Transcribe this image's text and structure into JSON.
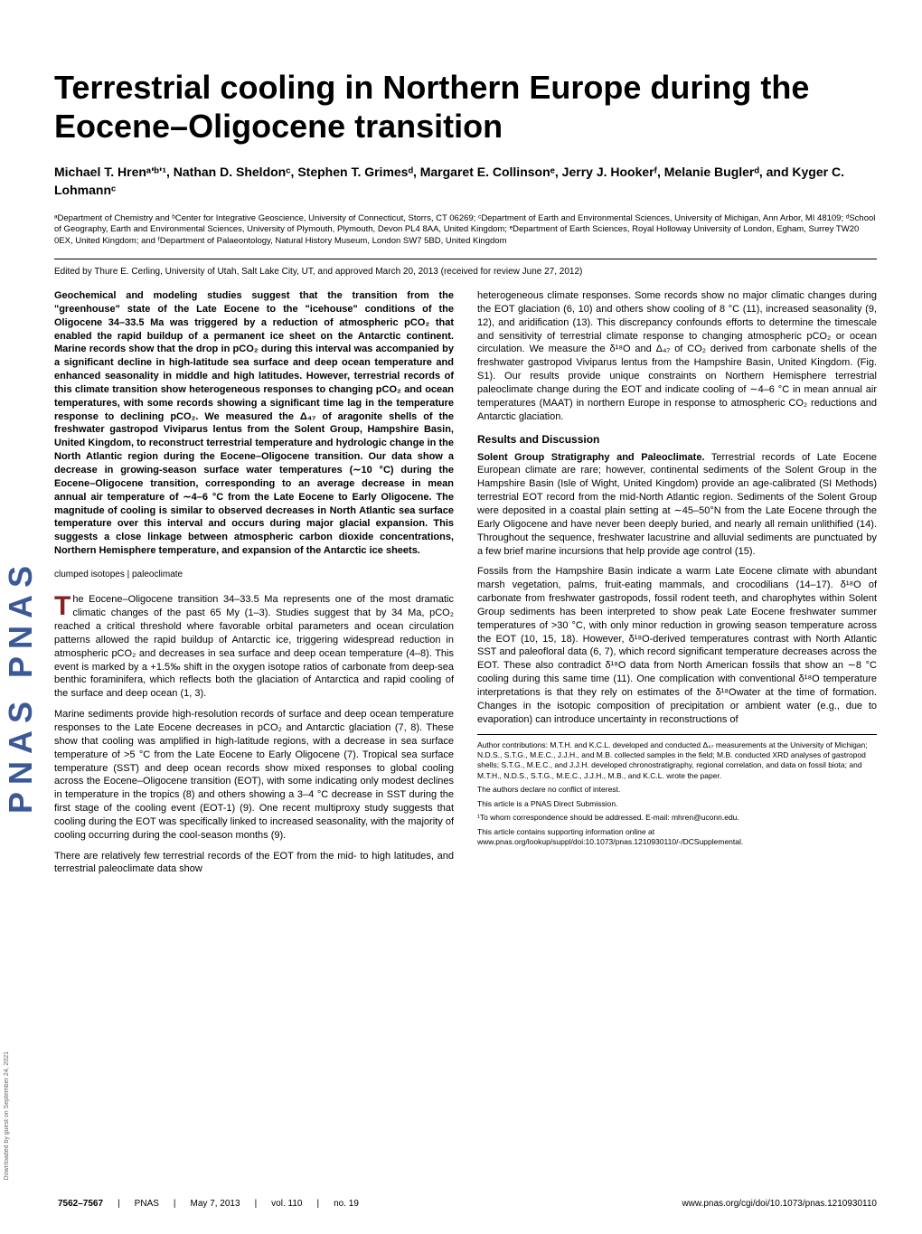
{
  "sidebar": {
    "logo": "PNAS PNAS",
    "download_note": "Downloaded by guest on September 24, 2021"
  },
  "title": "Terrestrial cooling in Northern Europe during the Eocene–Oligocene transition",
  "authors": "Michael T. Hrenᵃ'ᵇ'¹, Nathan D. Sheldonᶜ, Stephen T. Grimesᵈ, Margaret E. Collinsonᵉ, Jerry J. Hookerᶠ, Melanie Buglerᵈ, and Kyger C. Lohmannᶜ",
  "affiliations": "ᵃDepartment of Chemistry and ᵇCenter for Integrative Geoscience, University of Connecticut, Storrs, CT 06269; ᶜDepartment of Earth and Environmental Sciences, University of Michigan, Ann Arbor, MI 48109; ᵈSchool of Geography, Earth and Environmental Sciences, University of Plymouth, Plymouth, Devon PL4 8AA, United Kingdom; ᵉDepartment of Earth Sciences, Royal Holloway University of London, Egham, Surrey TW20 0EX, United Kingdom; and ᶠDepartment of Palaeontology, Natural History Museum, London SW7 5BD, United Kingdom",
  "edited_by": "Edited by Thure E. Cerling, University of Utah, Salt Lake City, UT, and approved March 20, 2013 (received for review June 27, 2012)",
  "abstract": "Geochemical and modeling studies suggest that the transition from the \"greenhouse\" state of the Late Eocene to the \"icehouse\" conditions of the Oligocene 34–33.5 Ma was triggered by a reduction of atmospheric pCO₂ that enabled the rapid buildup of a permanent ice sheet on the Antarctic continent. Marine records show that the drop in pCO₂ during this interval was accompanied by a significant decline in high-latitude sea surface and deep ocean temperature and enhanced seasonality in middle and high latitudes. However, terrestrial records of this climate transition show heterogeneous responses to changing pCO₂ and ocean temperatures, with some records showing a significant time lag in the temperature response to declining pCO₂. We measured the Δ₄₇ of aragonite shells of the freshwater gastropod Viviparus lentus from the Solent Group, Hampshire Basin, United Kingdom, to reconstruct terrestrial temperature and hydrologic change in the North Atlantic region during the Eocene–Oligocene transition. Our data show a decrease in growing-season surface water temperatures (∼10 °C) during the Eocene–Oligocene transition, corresponding to an average decrease in mean annual air temperature of ∼4–6 °C from the Late Eocene to Early Oligocene. The magnitude of cooling is similar to observed decreases in North Atlantic sea surface temperature over this interval and occurs during major glacial expansion. This suggests a close linkage between atmospheric carbon dioxide concentrations, Northern Hemisphere temperature, and expansion of the Antarctic ice sheets.",
  "keywords": "clumped isotopes | paleoclimate",
  "left_col": {
    "p1_first": "he Eocene–Oligocene transition 34–33.5 Ma represents one of the most dramatic climatic changes of the past 65 My (1–3). Studies suggest that by 34 Ma, pCO₂ reached a critical threshold where favorable orbital parameters and ocean circulation patterns allowed the rapid buildup of Antarctic ice, triggering widespread reduction in atmospheric pCO₂ and decreases in sea surface and deep ocean temperature (4–8). This event is marked by a +1.5‰ shift in the oxygen isotope ratios of carbonate from deep-sea benthic foraminifera, which reflects both the glaciation of Antarctica and rapid cooling of the surface and deep ocean (1, 3).",
    "p2": "Marine sediments provide high-resolution records of surface and deep ocean temperature responses to the Late Eocene decreases in pCO₂ and Antarctic glaciation (7, 8). These show that cooling was amplified in high-latitude regions, with a decrease in sea surface temperature of >5 °C from the Late Eocene to Early Oligocene (7). Tropical sea surface temperature (SST) and deep ocean records show mixed responses to global cooling across the Eocene–Oligocene transition (EOT), with some indicating only modest declines in temperature in the tropics (8) and others showing a 3–4 °C decrease in SST during the first stage of the cooling event (EOT-1) (9). One recent multiproxy study suggests that cooling during the EOT was specifically linked to increased seasonality, with the majority of cooling occurring during the cool-season months (9).",
    "p3": "There are relatively few terrestrial records of the EOT from the mid- to high latitudes, and terrestrial paleoclimate data show"
  },
  "right_col": {
    "p1": "heterogeneous climate responses. Some records show no major climatic changes during the EOT glaciation (6, 10) and others show cooling of 8 °C (11), increased seasonality (9, 12), and aridification (13). This discrepancy confounds efforts to determine the timescale and sensitivity of terrestrial climate response to changing atmospheric pCO₂ or ocean circulation. We measure the δ¹⁸O and Δ₄₇ of CO₂ derived from carbonate shells of the freshwater gastropod Viviparus lentus from the Hampshire Basin, United Kingdom. (Fig. S1). Our results provide unique constraints on Northern Hemisphere terrestrial paleoclimate change during the EOT and indicate cooling of ∼4–6 °C in mean annual air temperatures (MAAT) in northern Europe in response to atmospheric CO₂ reductions and Antarctic glaciation.",
    "section_head": "Results and Discussion",
    "sub_head": "Solent Group Stratigraphy and Paleoclimate.",
    "p2": " Terrestrial records of Late Eocene European climate are rare; however, continental sediments of the Solent Group in the Hampshire Basin (Isle of Wight, United Kingdom) provide an age-calibrated (SI Methods) terrestrial EOT record from the mid-North Atlantic region. Sediments of the Solent Group were deposited in a coastal plain setting at ∼45–50°N from the Late Eocene through the Early Oligocene and have never been deeply buried, and nearly all remain unlithified (14). Throughout the sequence, freshwater lacustrine and alluvial sediments are punctuated by a few brief marine incursions that help provide age control (15).",
    "p3": "Fossils from the Hampshire Basin indicate a warm Late Eocene climate with abundant marsh vegetation, palms, fruit-eating mammals, and crocodilians (14–17). δ¹⁸O of carbonate from freshwater gastropods, fossil rodent teeth, and charophytes within Solent Group sediments has been interpreted to show peak Late Eocene freshwater summer temperatures of >30 °C, with only minor reduction in growing season temperature across the EOT (10, 15, 18). However, δ¹⁸O-derived temperatures contrast with North Atlantic SST and paleofloral data (6, 7), which record significant temperature decreases across the EOT. These also contradict δ¹⁸O data from North American fossils that show an ∼8 °C cooling during this same time (11). One complication with conventional δ¹⁸O temperature interpretations is that they rely on estimates of the δ¹⁸Owater at the time of formation. Changes in the isotopic composition of precipitation or ambient water (e.g., due to evaporation) can introduce uncertainty in reconstructions of"
  },
  "footer_notes": {
    "contributions": "Author contributions: M.T.H. and K.C.L. developed and conducted Δ₄₇ measurements at the University of Michigan; N.D.S., S.T.G., M.E.C., J.J.H., and M.B. collected samples in the field; M.B. conducted XRD analyses of gastropod shells; S.T.G., M.E.C., and J.J.H. developed chronostratigraphy, regional correlation, and data on fossil biota; and M.T.H., N.D.S., S.T.G., M.E.C., J.J.H., M.B., and K.C.L. wrote the paper.",
    "conflict": "The authors declare no conflict of interest.",
    "submission": "This article is a PNAS Direct Submission.",
    "correspondence": "¹To whom correspondence should be addressed. E-mail: mhren@uconn.edu.",
    "supporting": "This article contains supporting information online at www.pnas.org/lookup/suppl/doi:10.1073/pnas.1210930110/-/DCSupplemental."
  },
  "page_footer": {
    "page_range": "7562–7567",
    "sep1": "|",
    "journal": "PNAS",
    "sep2": "|",
    "date": "May 7, 2013",
    "sep3": "|",
    "vol": "vol. 110",
    "sep4": "|",
    "no": "no. 19",
    "doi": "www.pnas.org/cgi/doi/10.1073/pnas.1210930110"
  },
  "colors": {
    "title_color": "#000000",
    "link_color": "#882222",
    "logo_color": "#3b5998"
  },
  "typography": {
    "title_fontsize": 36,
    "authors_fontsize": 14,
    "affiliations_fontsize": 9.5,
    "body_fontsize": 11,
    "footer_fontsize": 8.5
  }
}
